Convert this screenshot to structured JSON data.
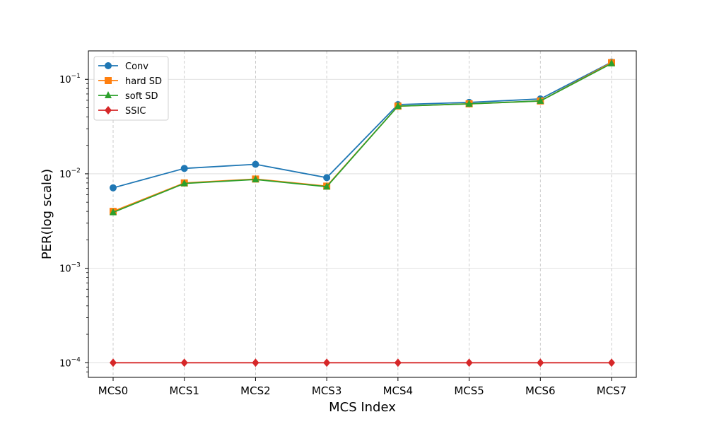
{
  "chart_data": {
    "type": "line",
    "xlabel": "MCS Index",
    "ylabel": "PER(log scale)",
    "yscale": "log",
    "ylim": [
      7e-05,
      0.2
    ],
    "y_ticks": [
      0.0001,
      0.001,
      0.01,
      0.1
    ],
    "y_tick_labels": [
      {
        "base": "10",
        "exp": "−4"
      },
      {
        "base": "10",
        "exp": "−3"
      },
      {
        "base": "10",
        "exp": "−2"
      },
      {
        "base": "10",
        "exp": "−1"
      }
    ],
    "categories": [
      "MCS0",
      "MCS1",
      "MCS2",
      "MCS3",
      "MCS4",
      "MCS5",
      "MCS6",
      "MCS7"
    ],
    "grid": true,
    "legend_position": "top-left",
    "series": [
      {
        "name": "Conv",
        "color": "#1f77b4",
        "marker": "circle",
        "values": [
          0.0071,
          0.0114,
          0.0126,
          0.0091,
          0.054,
          0.057,
          0.062,
          0.152
        ]
      },
      {
        "name": "hard SD",
        "color": "#ff7f0e",
        "marker": "square",
        "values": [
          0.004,
          0.008,
          0.0088,
          0.0074,
          0.052,
          0.055,
          0.059,
          0.15
        ]
      },
      {
        "name": "soft SD",
        "color": "#2ca02c",
        "marker": "triangle",
        "values": [
          0.0039,
          0.0079,
          0.0087,
          0.0073,
          0.052,
          0.055,
          0.059,
          0.147
        ]
      },
      {
        "name": "SSIC",
        "color": "#d62728",
        "marker": "diamond",
        "values": [
          0.0001,
          0.0001,
          0.0001,
          0.0001,
          0.0001,
          0.0001,
          0.0001,
          0.0001
        ]
      }
    ]
  }
}
